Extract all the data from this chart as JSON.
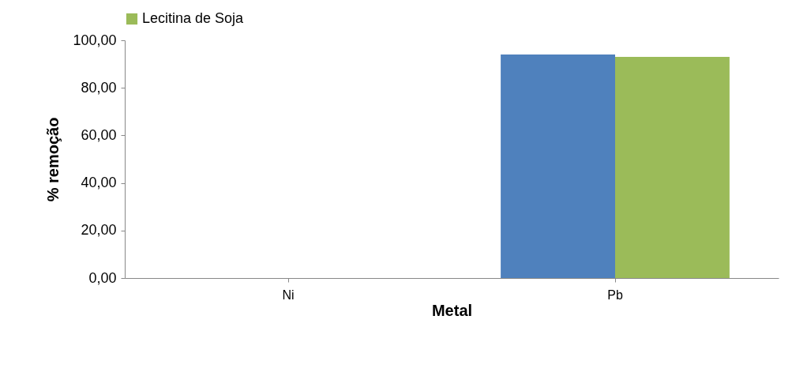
{
  "chart_data": {
    "type": "bar",
    "categories": [
      "Ni",
      "Pb"
    ],
    "xlabel": "Metal",
    "ylabel": "% remoção",
    "series": [
      {
        "color": "#4f81bd",
        "values": [
          0,
          94.0
        ]
      },
      {
        "name": "Lecitina de Soja",
        "color": "#9bbb59",
        "values": [
          0,
          93.0
        ]
      }
    ],
    "ylim": [
      0,
      100
    ],
    "yticks": [
      {
        "value": 0,
        "label": "0,00"
      },
      {
        "value": 20,
        "label": "20,00"
      },
      {
        "value": 40,
        "label": "40,00"
      },
      {
        "value": 60,
        "label": "60,00"
      },
      {
        "value": 80,
        "label": "80,00"
      },
      {
        "value": 100,
        "label": "100,00"
      }
    ],
    "grid": false,
    "legend": "top"
  }
}
